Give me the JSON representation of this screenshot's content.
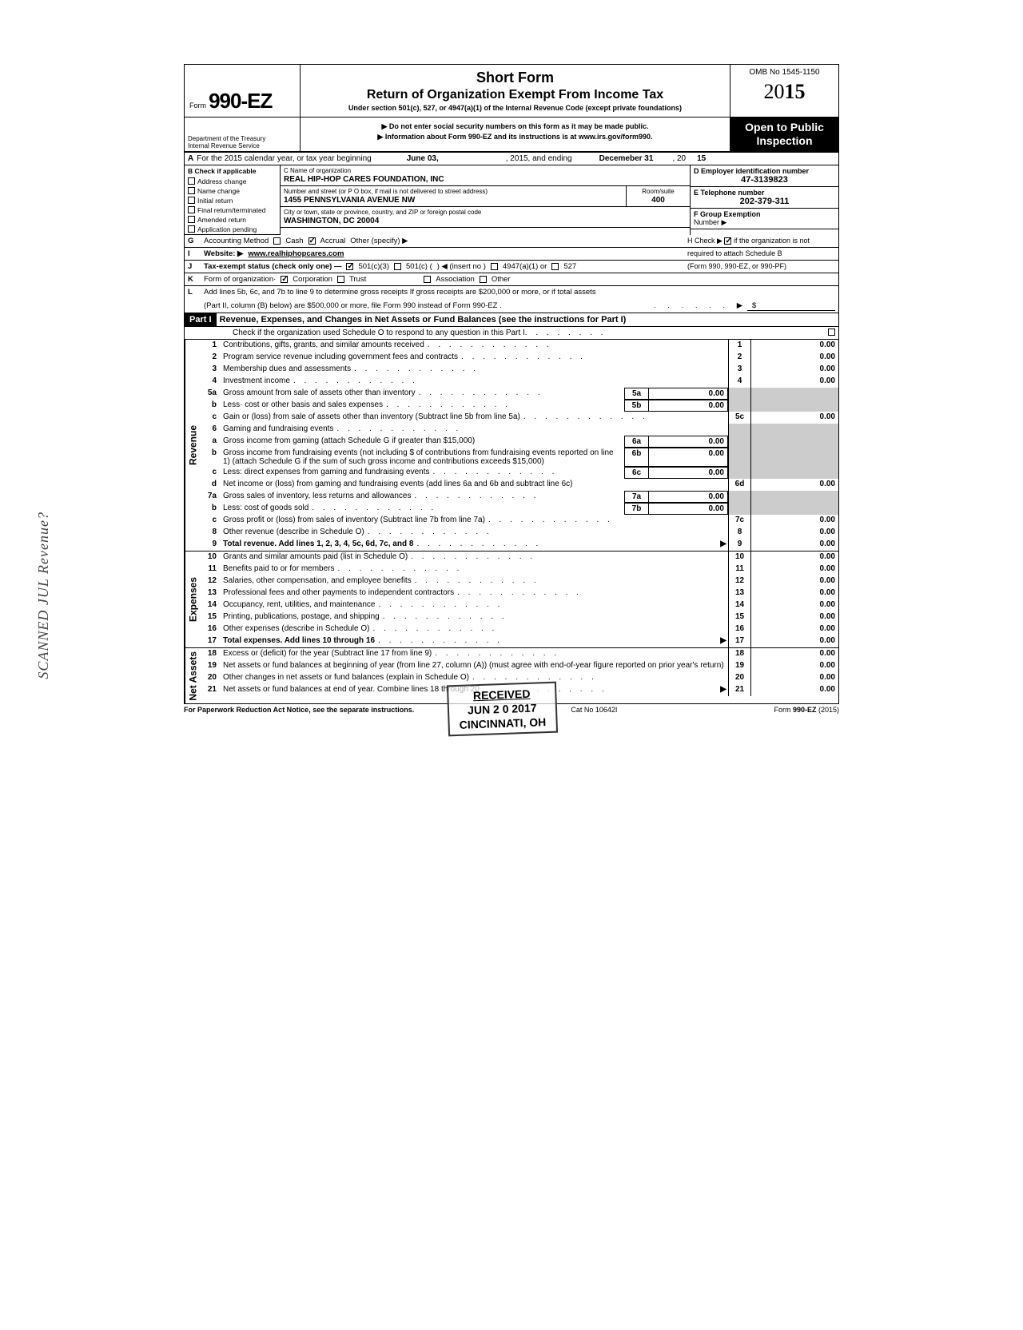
{
  "form": {
    "number": "990-EZ",
    "form_prefix": "Form",
    "title1": "Short Form",
    "title2": "Return of Organization Exempt From Income Tax",
    "subtitle": "Under section 501(c), 527, or 4947(a)(1) of the Internal Revenue Code (except private foundations)",
    "notice1": "▶ Do not enter social security numbers on this form as it may be made public.",
    "notice2": "▶ Information about Form 990-EZ and its instructions is at www.irs.gov/form990.",
    "omb": "OMB No 1545-1150",
    "year_prefix": "20",
    "year_bold": "15",
    "dept1": "Department of the Treasury",
    "dept2": "Internal Revenue Service",
    "inspection1": "Open to Public",
    "inspection2": "Inspection"
  },
  "row_a": {
    "label": "A",
    "text1": "For the 2015 calendar year, or tax year beginning",
    "begin": "June 03,",
    "text2": ", 2015, and ending",
    "end": "Decemeber 31",
    "text3": ", 20",
    "yr": "15"
  },
  "section_b": {
    "header": "B Check if applicable",
    "items": [
      "Address change",
      "Name change",
      "Initial return",
      "Final return/terminated",
      "Amended return",
      "Application pending"
    ]
  },
  "section_c": {
    "name_label": "C Name of organization",
    "name": "REAL HIP-HOP CARES FOUNDATION, INC",
    "addr_label": "Number and street (or P O  box, if mail is not delivered to street address)",
    "addr": "1455 PENNSYLVANIA AVENUE NW",
    "room_label": "Room/suite",
    "room": "400",
    "city_label": "City or town, state or province, country, and ZIP or foreign postal code",
    "city": "WASHINGTON, DC 20004"
  },
  "section_d": {
    "ein_label": "D Employer identification number",
    "ein": "47-3139823",
    "tel_label": "E Telephone number",
    "tel": "202-379-311",
    "grp_label": "F  Group Exemption",
    "grp_label2": "Number ▶"
  },
  "line_g": {
    "label": "G",
    "text": "Accounting Method",
    "cash": "Cash",
    "accrual": "Accrual",
    "other": "Other (specify) ▶"
  },
  "line_h": {
    "text1": "H Check ▶",
    "text2": "if the organization is not",
    "text3": "required to attach Schedule B",
    "text4": "(Form 990, 990-EZ, or 990-PF)"
  },
  "line_i": {
    "label": "I",
    "text": "Website: ▶",
    "val": "www.realhiphopcares.com"
  },
  "line_j": {
    "label": "J",
    "text": "Tax-exempt status (check only one) —",
    "o1": "501(c)(3)",
    "o2": "501(c) (",
    "o2b": ") ◀ (insert no )",
    "o3": "4947(a)(1) or",
    "o4": "527"
  },
  "line_k": {
    "label": "K",
    "text": "Form of organization·",
    "o1": "Corporation",
    "o2": "Trust",
    "o3": "Association",
    "o4": "Other"
  },
  "line_l": {
    "label": "L",
    "text": "Add lines 5b, 6c, and 7b to line 9 to determine gross receipts  If gross receipts are $200,000 or more, or if total assets",
    "text2": "(Part II, column (B) below) are $500,000 or more, file Form 990 instead of Form 990-EZ ."
  },
  "part1": {
    "label": "Part I",
    "title": "Revenue, Expenses, and Changes in Net Assets or Fund Balances (see the instructions for Part I)",
    "schedule_o": "Check if the organization used Schedule O to respond to any question in this Part I"
  },
  "sections": {
    "revenue_label": "Revenue",
    "expenses_label": "Expenses",
    "netassets_label": "Net Assets"
  },
  "lines": [
    {
      "no": "1",
      "desc": "Contributions, gifts, grants, and similar amounts received",
      "end_no": "1",
      "end_val": "0.00"
    },
    {
      "no": "2",
      "desc": "Program service revenue including government fees and contracts",
      "end_no": "2",
      "end_val": "0.00"
    },
    {
      "no": "3",
      "desc": "Membership dues and assessments",
      "end_no": "3",
      "end_val": "0.00"
    },
    {
      "no": "4",
      "desc": "Investment income",
      "end_no": "4",
      "end_val": "0.00"
    },
    {
      "no": "5a",
      "desc": "Gross amount from sale of assets other than inventory",
      "mid_no": "5a",
      "mid_val": "0.00",
      "shaded": true
    },
    {
      "no": "b",
      "desc": "Less· cost or other basis and sales expenses",
      "mid_no": "5b",
      "mid_val": "0.00",
      "shaded": true
    },
    {
      "no": "c",
      "desc": "Gain or (loss) from sale of assets other than inventory (Subtract line 5b from line 5a)",
      "end_no": "5c",
      "end_val": "0.00"
    },
    {
      "no": "6",
      "desc": "Gaming and fundraising events",
      "shaded": true,
      "no_end": true
    },
    {
      "no": "a",
      "desc": "Gross income from gaming (attach Schedule G if greater than $15,000)",
      "mid_no": "6a",
      "mid_val": "0.00",
      "shaded": true,
      "multiline": true
    },
    {
      "no": "b",
      "desc": "Gross income from fundraising events (not including  $                    of contributions from fundraising events reported on line 1) (attach Schedule G if the sum of such gross income and contributions exceeds $15,000)",
      "mid_no": "6b",
      "mid_val": "0.00",
      "shaded": true,
      "multiline": true
    },
    {
      "no": "c",
      "desc": "Less: direct expenses from gaming and fundraising events",
      "mid_no": "6c",
      "mid_val": "0.00",
      "shaded": true
    },
    {
      "no": "d",
      "desc": "Net income or (loss) from gaming and fundraising events (add lines 6a and 6b and subtract line 6c)",
      "end_no": "6d",
      "end_val": "0.00",
      "multiline": true
    },
    {
      "no": "7a",
      "desc": "Gross sales of inventory, less returns and allowances",
      "mid_no": "7a",
      "mid_val": "0.00",
      "shaded": true
    },
    {
      "no": "b",
      "desc": "Less: cost of goods sold",
      "mid_no": "7b",
      "mid_val": "0.00",
      "shaded": true
    },
    {
      "no": "c",
      "desc": "Gross profit or (loss) from sales of inventory (Subtract line 7b from line 7a)",
      "end_no": "7c",
      "end_val": "0.00"
    },
    {
      "no": "8",
      "desc": "Other revenue (describe in Schedule O)",
      "end_no": "8",
      "end_val": "0.00"
    },
    {
      "no": "9",
      "desc": "Total revenue. Add lines 1, 2, 3, 4, 5c, 6d, 7c, and 8",
      "end_no": "9",
      "end_val": "0.00",
      "bold": true,
      "arrow": true
    }
  ],
  "exp_lines": [
    {
      "no": "10",
      "desc": "Grants and similar amounts paid (list in Schedule O)",
      "end_no": "10",
      "end_val": "0.00"
    },
    {
      "no": "11",
      "desc": "Benefits paid to or for members",
      "end_no": "11",
      "end_val": "0.00"
    },
    {
      "no": "12",
      "desc": "Salaries, other compensation, and employee benefits",
      "end_no": "12",
      "end_val": "0.00"
    },
    {
      "no": "13",
      "desc": "Professional fees and other payments to independent contractors",
      "end_no": "13",
      "end_val": "0.00"
    },
    {
      "no": "14",
      "desc": "Occupancy, rent, utilities, and maintenance",
      "end_no": "14",
      "end_val": "0.00"
    },
    {
      "no": "15",
      "desc": "Printing, publications, postage, and shipping",
      "end_no": "15",
      "end_val": "0.00"
    },
    {
      "no": "16",
      "desc": "Other expenses (describe in Schedule O)",
      "end_no": "16",
      "end_val": "0.00"
    },
    {
      "no": "17",
      "desc": "Total expenses. Add lines 10 through 16",
      "end_no": "17",
      "end_val": "0.00",
      "bold": true,
      "arrow": true
    }
  ],
  "net_lines": [
    {
      "no": "18",
      "desc": "Excess or (deficit) for the year (Subtract line 17 from line 9)",
      "end_no": "18",
      "end_val": "0.00"
    },
    {
      "no": "19",
      "desc": "Net assets or fund balances at beginning of year (from line 27, column (A)) (must agree with end-of-year figure reported on prior year's return)",
      "end_no": "19",
      "end_val": "0.00",
      "multiline": true
    },
    {
      "no": "20",
      "desc": "Other changes in net assets or fund balances (explain in Schedule O)",
      "end_no": "20",
      "end_val": "0.00"
    },
    {
      "no": "21",
      "desc": "Net assets or fund balances at end of year. Combine lines 18 through 20",
      "end_no": "21",
      "end_val": "0.00",
      "arrow": true
    }
  ],
  "footer": {
    "left": "For Paperwork Reduction Act Notice, see the separate instructions.",
    "mid": "Cat No  10642I",
    "right": "Form 990-EZ (2015)"
  },
  "stamp": {
    "received": "RECEIVED",
    "date": "JUN 2 0 2017",
    "city": "CINCINNATI, OH"
  },
  "watermark": "SCANNED JUL Revenue?",
  "colors": {
    "black": "#000000",
    "shade": "#cccccc"
  }
}
